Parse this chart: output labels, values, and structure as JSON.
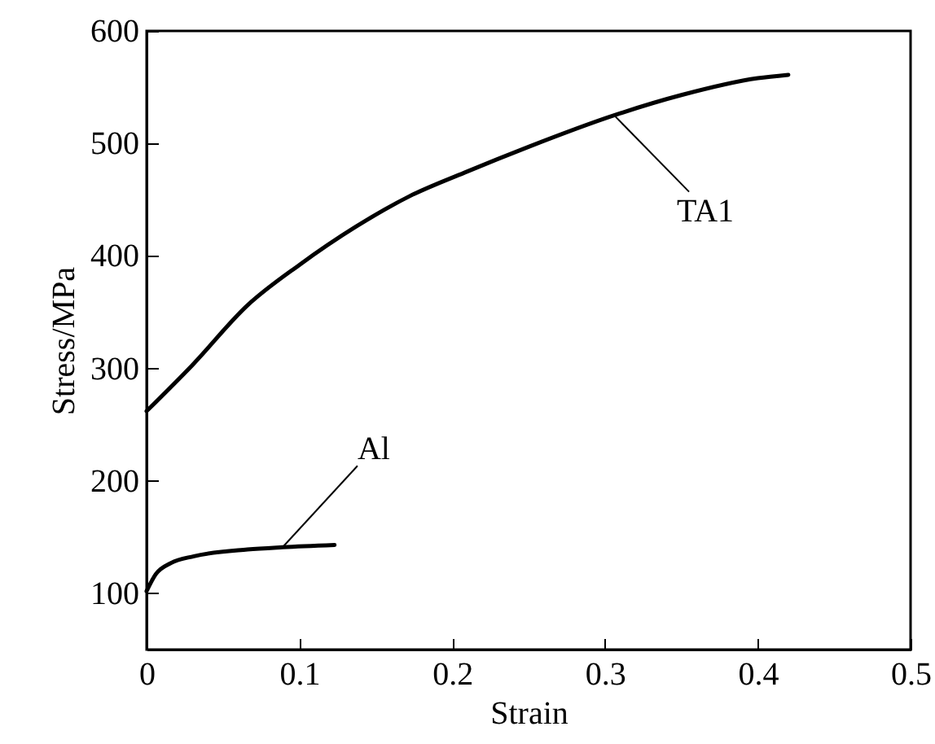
{
  "chart_data": {
    "type": "line",
    "xlabel": "Strain",
    "ylabel": "Stress/MPa",
    "xlim": [
      0,
      0.5
    ],
    "xticks": [
      0,
      0.1,
      0.2,
      0.3,
      0.4,
      0.5
    ],
    "ylim": [
      50,
      600
    ],
    "yticks": [
      100,
      200,
      300,
      400,
      500,
      600
    ],
    "grid": false,
    "marker": "none",
    "line_style": "solid",
    "series": [
      {
        "color": "#000000",
        "x": [
          0,
          0.03,
          0.066,
          0.1,
          0.137,
          0.172,
          0.208,
          0.25,
          0.306,
          0.35,
          0.4,
          0.42
        ],
        "values": [
          262,
          303,
          356,
          392,
          426,
          453,
          474,
          497,
          525,
          543,
          558,
          561
        ]
      },
      {
        "color": "#000000",
        "x": [
          0,
          0.006,
          0.016,
          0.031,
          0.066,
          0.089,
          0.123
        ],
        "values": [
          102,
          117,
          127,
          133,
          139,
          141,
          143
        ]
      }
    ],
    "annotations": [
      {
        "text": "TA1",
        "x": 0.306,
        "y": 525
      },
      {
        "text": "Al",
        "x": 0.089,
        "y": 141
      }
    ]
  }
}
